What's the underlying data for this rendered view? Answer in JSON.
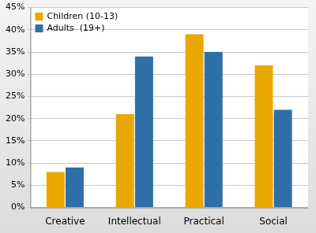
{
  "chart_data": {
    "type": "bar",
    "categories": [
      "Creative",
      "Intellectual",
      "Practical",
      "Social"
    ],
    "series": [
      {
        "name": "Children (10-13)",
        "color": "#e8a800",
        "values": [
          8,
          21,
          39,
          32
        ]
      },
      {
        "name": "Adults  (19+)",
        "color": "#2e6fa7",
        "values": [
          9,
          34,
          35,
          22
        ]
      }
    ],
    "ylim": [
      0,
      45
    ],
    "yticks": [
      {
        "value": 0,
        "label": "0%"
      },
      {
        "value": 5,
        "label": "5%"
      },
      {
        "value": 10,
        "label": "10%"
      },
      {
        "value": 15,
        "label": "15%"
      },
      {
        "value": 20,
        "label": "20%"
      },
      {
        "value": 25,
        "label": "25%"
      },
      {
        "value": 30,
        "label": "30%"
      },
      {
        "value": 35,
        "label": "35%"
      },
      {
        "value": 40,
        "label": "40%"
      },
      {
        "value": 45,
        "label": "45%"
      }
    ],
    "grid": true,
    "legend": "upper left"
  }
}
